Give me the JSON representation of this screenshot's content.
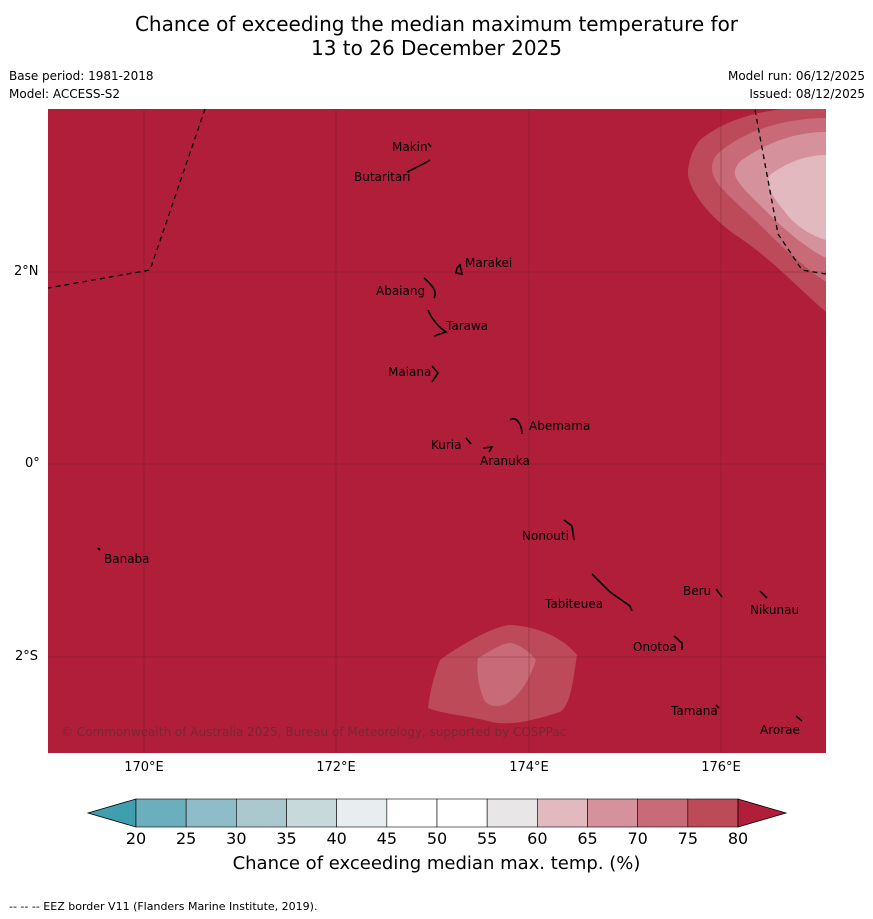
{
  "title_line1": "Chance of exceeding the median maximum temperature for",
  "title_line2": "13 to 26 December 2025",
  "base_period": "Base period: 1981-2018",
  "model": "Model: ACCESS-S2",
  "model_run": "Model run: 06/12/2025",
  "issued": "Issued: 08/12/2025",
  "copyright": "© Commonwealth of Australia 2025, Bureau of Meteorology, supported by COSPPac",
  "lat_labels": [
    "2°N",
    "0°",
    "2°S"
  ],
  "lon_labels": [
    "170°E",
    "172°E",
    "174°E",
    "176°E"
  ],
  "colorbar": {
    "ticks": [
      "20",
      "25",
      "30",
      "35",
      "40",
      "45",
      "50",
      "55",
      "60",
      "65",
      "70",
      "75",
      "80"
    ],
    "title": "Chance of exceeding median max. temp. (%)",
    "colors": [
      "#6baebe",
      "#8ebcc8",
      "#abc8ce",
      "#c8d9dc",
      "#e8eef0",
      "#ffffff",
      "#ffffff",
      "#e9e6e7",
      "#e3b9c0",
      "#d6929c",
      "#c86a77",
      "#bd4a58"
    ],
    "low_arrow_color": "#3f9fae",
    "high_arrow_color": "#b01e3a"
  },
  "map": {
    "background_color": "#b01e3a",
    "islands": [
      "Makin",
      "Butaritari",
      "Marakei",
      "Abaiang",
      "Tarawa",
      "Maiana",
      "Abemama",
      "Kuria",
      "Aranuka",
      "Nonouti",
      "Banaba",
      "Tabiteuea",
      "Beru",
      "Nikunau",
      "Onotoa",
      "Tamana",
      "Arorae"
    ]
  },
  "footer": "--  --  -- EEZ border V11 (Flanders Marine Institute, 2019)."
}
